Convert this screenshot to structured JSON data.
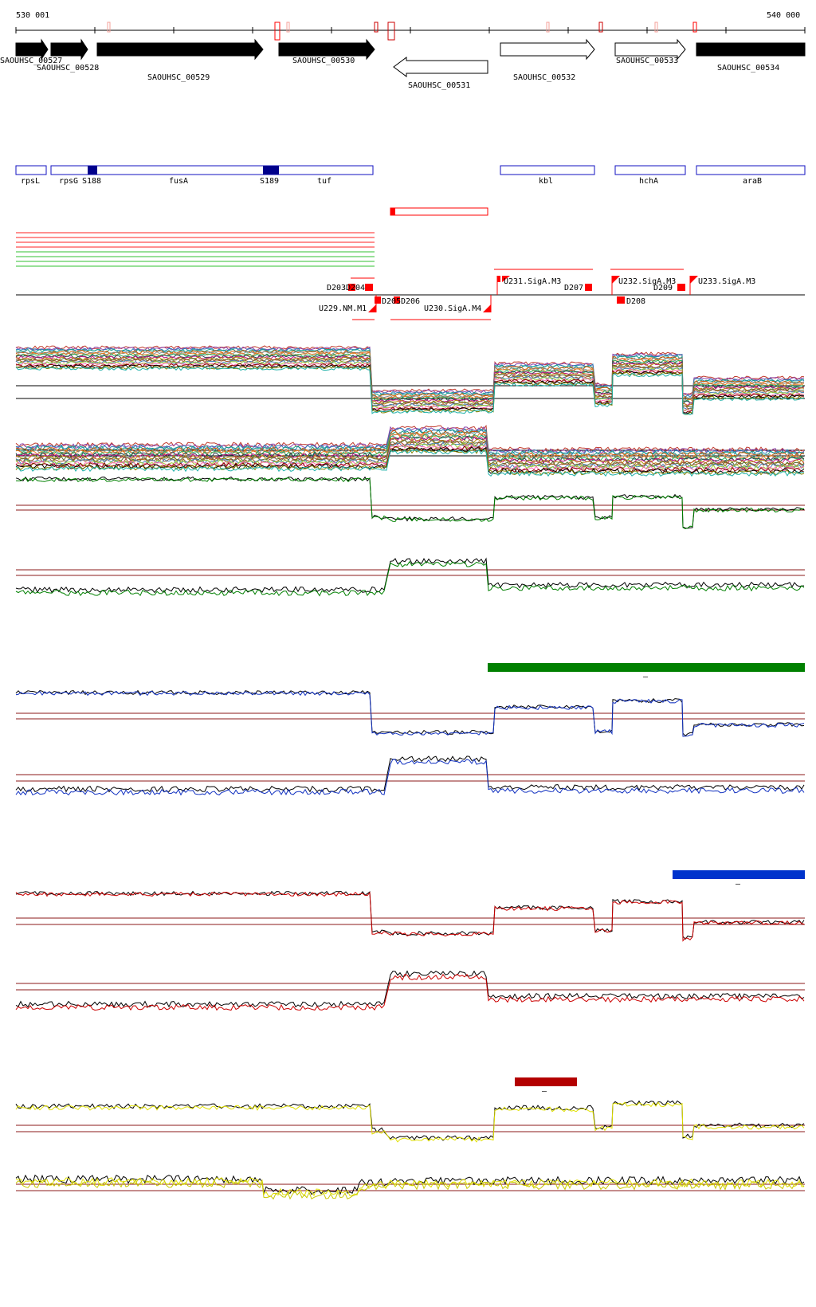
{
  "coord": {
    "start": "530 001",
    "end": "540 000"
  },
  "colors": {
    "gene_fill": "#000000",
    "gene_outline": "#000000",
    "region_outline": "#1010c0",
    "region_fill": "#00008b",
    "feature_red": "#ff0000",
    "hline_dark": "#8b1a1a",
    "green_dark": "#008000",
    "blue": "#1030c0",
    "red": "#cc0000",
    "yellow": "#e0e000",
    "green_bar": "#008000",
    "blue_bar": "#0033cc",
    "red_bar": "#b30000"
  },
  "genes": [
    {
      "label": "SAOUHSC_00527",
      "filled": true
    },
    {
      "label": "SAOUHSC_00528",
      "filled": true
    },
    {
      "label": "SAOUHSC_00529",
      "filled": true
    },
    {
      "label": "SAOUHSC_00530",
      "filled": true
    },
    {
      "label": "SAOUHSC_00531",
      "filled": false
    },
    {
      "label": "SAOUHSC_00532",
      "filled": false
    },
    {
      "label": "SAOUHSC_00533",
      "filled": false
    },
    {
      "label": "SAOUHSC_00534",
      "filled": true
    }
  ],
  "regions": [
    {
      "label": "rpsL"
    },
    {
      "label": "rpsG"
    },
    {
      "label": "fusA"
    },
    {
      "label": "tuf"
    },
    {
      "label": "kbl"
    },
    {
      "label": "hchA"
    },
    {
      "label": "araB"
    }
  ],
  "region_marks": [
    {
      "label": "S188"
    },
    {
      "label": "S189"
    }
  ],
  "features": [
    {
      "label": "D203"
    },
    {
      "label": "D204"
    },
    {
      "label": "U229.NM.M1"
    },
    {
      "label": "D205"
    },
    {
      "label": "D206"
    },
    {
      "label": "U230.SigA.M4"
    },
    {
      "label": "U231.SigA.M3"
    },
    {
      "label": "D207"
    },
    {
      "label": "U232.SigA.M3"
    },
    {
      "label": "D209"
    },
    {
      "label": "D208"
    },
    {
      "label": "U233.SigA.M3"
    }
  ],
  "condition_bars": [
    {
      "name": "green",
      "marker": "–"
    },
    {
      "name": "blue",
      "marker": "–"
    },
    {
      "name": "red",
      "marker": "–"
    }
  ]
}
